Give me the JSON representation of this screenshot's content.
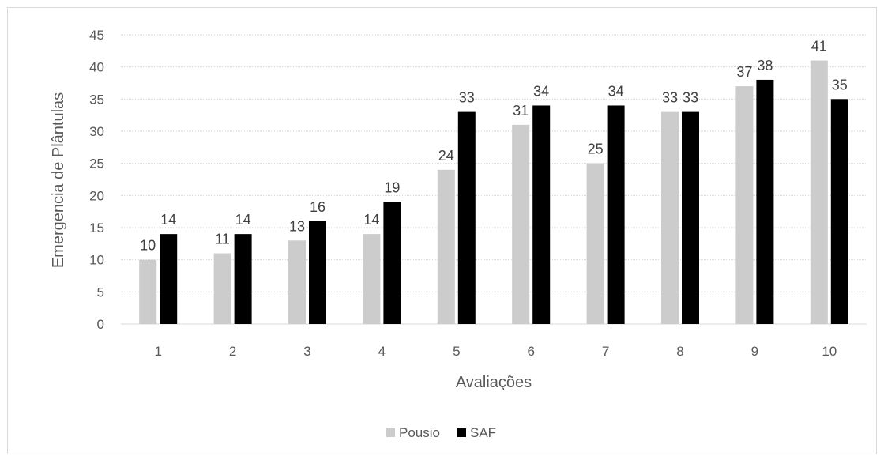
{
  "chart_data": {
    "type": "bar",
    "title": "",
    "xlabel": "Avaliações",
    "ylabel": "Emergencia de Plântulas",
    "ylim": [
      0,
      45
    ],
    "yticks": [
      0,
      5,
      10,
      15,
      20,
      25,
      30,
      35,
      40,
      45
    ],
    "categories": [
      "1",
      "2",
      "3",
      "4",
      "5",
      "6",
      "7",
      "8",
      "9",
      "10"
    ],
    "series": [
      {
        "name": "Pousio",
        "color": "#cccccc",
        "values": [
          10,
          11,
          13,
          14,
          24,
          31,
          25,
          33,
          37,
          41
        ]
      },
      {
        "name": "SAF",
        "color": "#000000",
        "values": [
          14,
          14,
          16,
          19,
          33,
          34,
          34,
          33,
          38,
          35
        ]
      }
    ],
    "grid": true,
    "legend": "bottom-center",
    "data_labels": true
  }
}
